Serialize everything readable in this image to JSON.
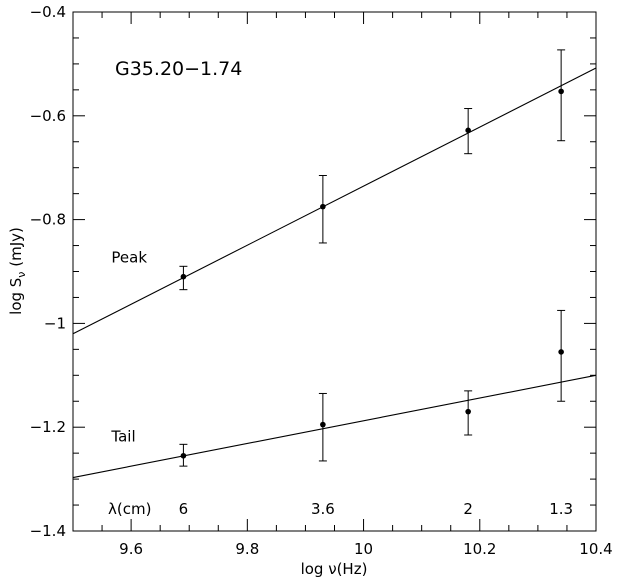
{
  "chart_data": {
    "type": "scatter",
    "title": "G35.20−1.74",
    "xlabel": "log ν(Hz)",
    "ylabel_parts": {
      "base": "log S",
      "subscript": "ν",
      "unit": " (mJy)"
    },
    "xlim": [
      9.5,
      10.4
    ],
    "ylim": [
      -1.4,
      -0.4
    ],
    "grid": false,
    "x_ticks_major": [
      9.6,
      9.8,
      10.0,
      10.2,
      10.4
    ],
    "x_tick_labels": [
      "9.6",
      "9.8",
      "10",
      "10.2",
      "10.4"
    ],
    "y_ticks_major": [
      -1.4,
      -1.2,
      -1.0,
      -0.8,
      -0.6,
      -0.4
    ],
    "y_tick_labels": [
      "−1.4",
      "−1.2",
      "−1",
      "−0.8",
      "−0.6",
      "−0.4"
    ],
    "x_minor_step": 0.05,
    "y_minor_step": 0.05,
    "series": [
      {
        "name": "Peak",
        "x": [
          9.69,
          9.93,
          10.18,
          10.34
        ],
        "y": [
          -0.91,
          -0.775,
          -0.628,
          -0.553
        ],
        "err_low": [
          0.025,
          0.07,
          0.045,
          0.095
        ],
        "err_high": [
          0.02,
          0.06,
          0.042,
          0.08
        ],
        "fit": {
          "x": [
            9.5,
            10.4
          ],
          "y": [
            -1.02,
            -0.508
          ]
        }
      },
      {
        "name": "Tail",
        "x": [
          9.69,
          9.93,
          10.18,
          10.34
        ],
        "y": [
          -1.255,
          -1.195,
          -1.17,
          -1.055
        ],
        "err_low": [
          0.02,
          0.07,
          0.045,
          0.095
        ],
        "err_high": [
          0.022,
          0.06,
          0.04,
          0.08
        ],
        "fit": {
          "x": [
            9.5,
            10.4
          ],
          "y": [
            -1.297,
            -1.1
          ]
        }
      }
    ],
    "wavelength_row": {
      "label": "λ(cm)",
      "entries": [
        {
          "x": 9.69,
          "text": "6"
        },
        {
          "x": 9.93,
          "text": "3.6"
        },
        {
          "x": 10.18,
          "text": "2"
        },
        {
          "x": 10.34,
          "text": "1.3"
        }
      ]
    }
  }
}
